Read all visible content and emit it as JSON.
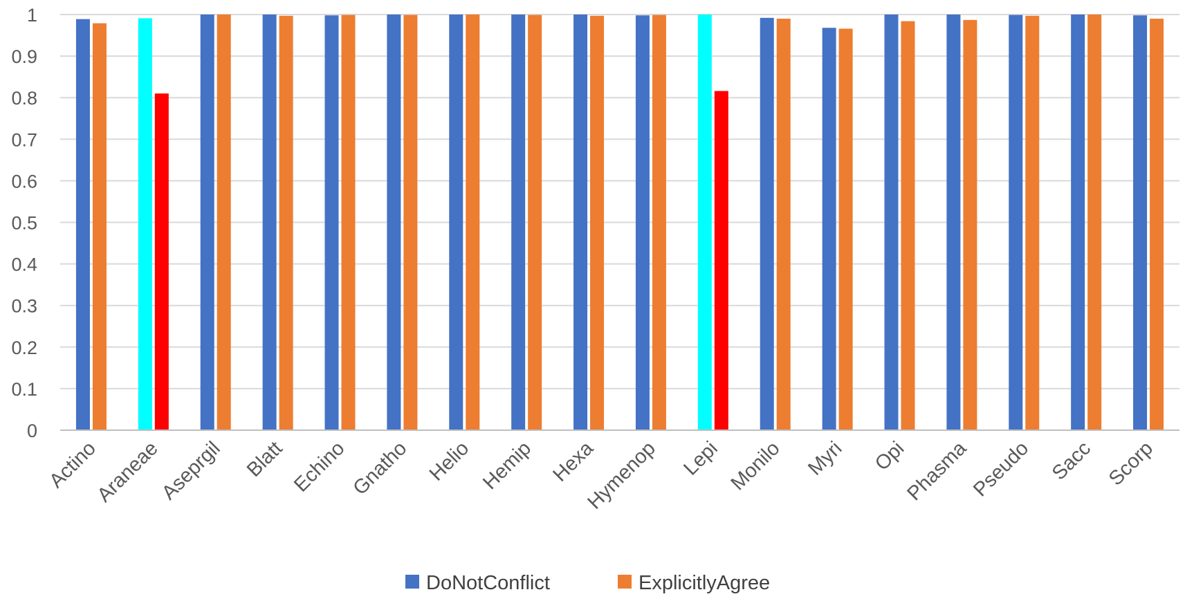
{
  "chart_data": {
    "type": "bar",
    "title": "",
    "xlabel": "",
    "ylabel": "",
    "ylim": [
      0,
      1
    ],
    "yticks": [
      "0",
      "0.1",
      "0.2",
      "0.3",
      "0.4",
      "0.5",
      "0.6",
      "0.7",
      "0.8",
      "0.9",
      "1"
    ],
    "grid": true,
    "legend_position": "bottom",
    "categories": [
      "Actino",
      "Araneae",
      "Aseprgil",
      "Blatt",
      "Echino",
      "Gnatho",
      "Helio",
      "Hemip",
      "Hexa",
      "Hymenop",
      "Lepi",
      "Monilo",
      "Myri",
      "Opi",
      "Phasma",
      "Pseudo",
      "Sacc",
      "Scorp"
    ],
    "series": [
      {
        "name": "DoNotConflict",
        "color": "#4472C4",
        "values": [
          0.989,
          0.991,
          1.0,
          1.0,
          0.998,
          1.0,
          1.0,
          1.0,
          1.0,
          0.998,
          1.0,
          0.992,
          0.968,
          1.0,
          1.0,
          0.999,
          1.0,
          0.998
        ]
      },
      {
        "name": "ExplicitlyAgree",
        "color": "#ED7D31",
        "values": [
          0.979,
          0.81,
          1.0,
          0.997,
          0.999,
          0.999,
          1.0,
          0.999,
          0.997,
          0.999,
          0.816,
          0.99,
          0.966,
          0.984,
          0.987,
          0.997,
          1.0,
          0.99
        ]
      }
    ],
    "highlight_colors": {
      "DoNotConflict": "#00FFFF",
      "ExplicitlyAgree": "#FF0000"
    },
    "highlighted_categories": [
      "Araneae",
      "Lepi"
    ]
  }
}
